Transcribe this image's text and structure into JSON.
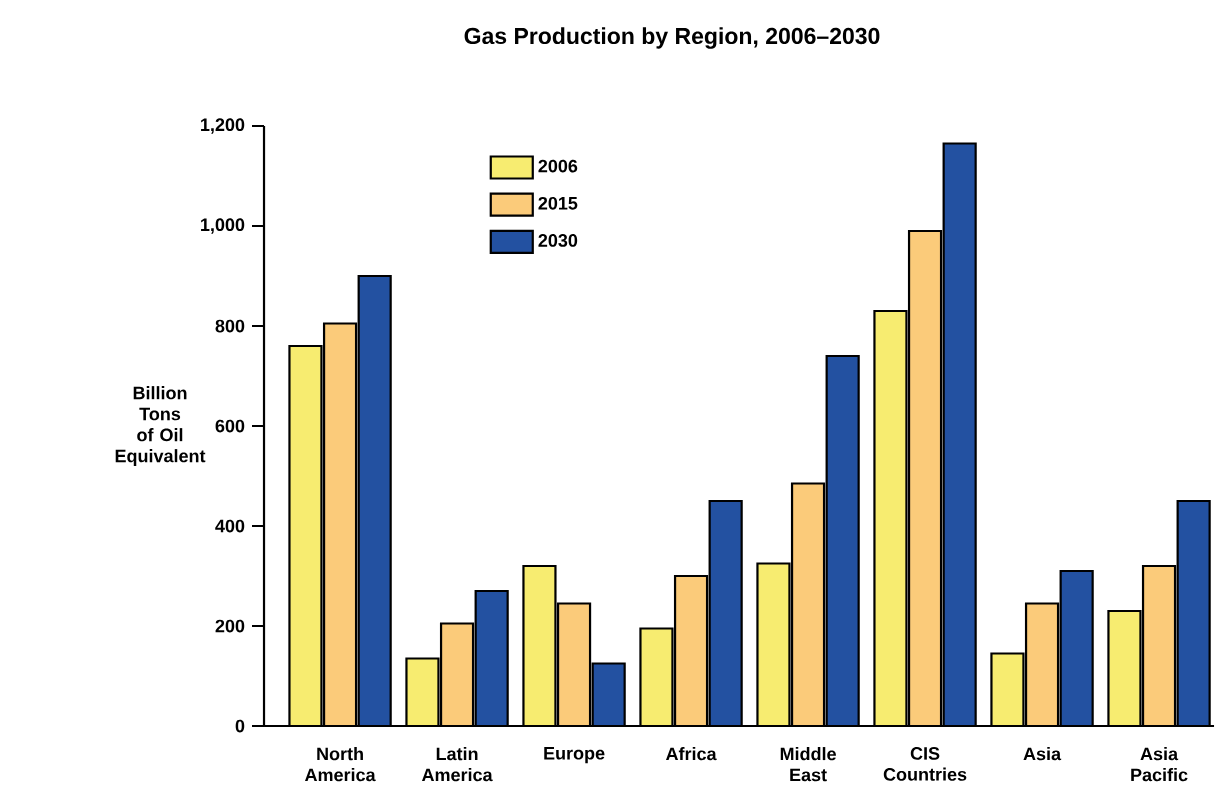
{
  "chart_data": {
    "type": "bar",
    "title": "Gas Production by Region, 2006–2030",
    "ylabel": "Billion Tons of Oil Equivalent",
    "categories": [
      "North America",
      "Latin America",
      "Europe",
      "Africa",
      "Middle East",
      "CIS Countries",
      "Asia",
      "Asia Pacific"
    ],
    "series": [
      {
        "name": "2006",
        "color": "#f7ec70",
        "values": [
          760,
          135,
          320,
          195,
          325,
          830,
          145,
          230
        ]
      },
      {
        "name": "2015",
        "color": "#fbcb7a",
        "values": [
          805,
          205,
          245,
          300,
          485,
          990,
          245,
          320
        ]
      },
      {
        "name": "2030",
        "color": "#2351a1",
        "values": [
          900,
          270,
          125,
          450,
          740,
          1165,
          310,
          450
        ]
      }
    ],
    "ylim": [
      0,
      1200
    ],
    "yticks": [
      0,
      200,
      400,
      600,
      800,
      {
        "value": 1000,
        "label": "1,000"
      },
      {
        "value": 1200,
        "label": "1,200"
      }
    ],
    "legend": "top left"
  }
}
